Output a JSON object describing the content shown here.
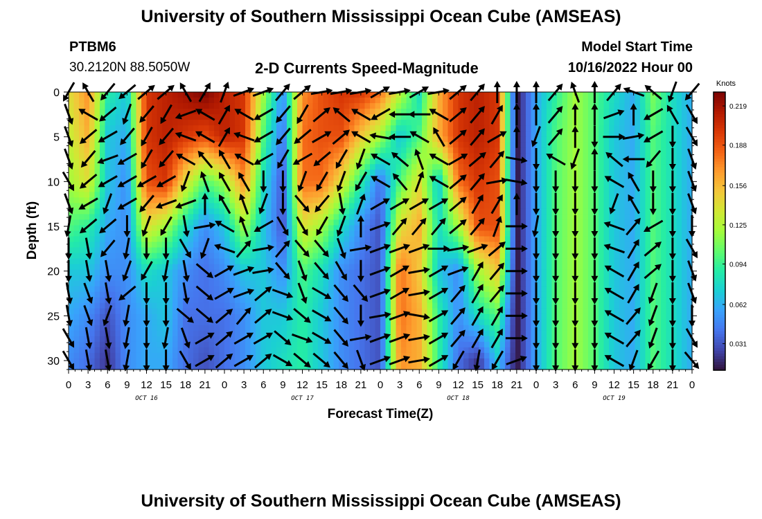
{
  "header": {
    "title": "University of Southern Mississippi Ocean Cube (AMSEAS)",
    "station": "PTBM6",
    "coords": "30.2120N  88.5050W",
    "subtitle": "2-D Currents Speed-Magnitude",
    "model_start_label": "Model Start Time",
    "model_start_value": "10/16/2022 Hour 00"
  },
  "footer": {
    "title": "University of Southern Mississippi Ocean Cube (AMSEAS)"
  },
  "chart_data": {
    "type": "heatmap",
    "title": "2-D Currents Speed-Magnitude",
    "xlabel": "Forecast Time(Z)",
    "ylabel": "Depth (ft)",
    "x_tick_labels": [
      "0",
      "3",
      "6",
      "9",
      "12",
      "15",
      "18",
      "21",
      "0",
      "3",
      "6",
      "9",
      "12",
      "15",
      "18",
      "21",
      "0",
      "3",
      "6",
      "9",
      "12",
      "15",
      "18",
      "21",
      "0",
      "3",
      "6",
      "9",
      "12",
      "15",
      "18",
      "21",
      "0"
    ],
    "x_range_hours": [
      0,
      96
    ],
    "day_labels": [
      {
        "label": "OCT 16",
        "hour": 12
      },
      {
        "label": "OCT 17",
        "hour": 36
      },
      {
        "label": "OCT 18",
        "hour": 60
      },
      {
        "label": "OCT 19",
        "hour": 84
      }
    ],
    "y_tick_labels": [
      "0",
      "5",
      "10",
      "15",
      "20",
      "25",
      "30"
    ],
    "y_range_ft": [
      0,
      31
    ],
    "colorbar": {
      "unit": "Knots",
      "tick_labels": [
        "0.219",
        "0.188",
        "0.156",
        "0.125",
        "0.094",
        "0.062",
        "0.031"
      ],
      "tick_values": [
        0.219,
        0.188,
        0.156,
        0.125,
        0.094,
        0.062,
        0.031
      ],
      "range": [
        0.01,
        0.23
      ],
      "colors": [
        "#30123b",
        "#4145ab",
        "#4675ed",
        "#39a2fc",
        "#1bcfd4",
        "#24eca6",
        "#61fc6c",
        "#a4fc3b",
        "#d1e834",
        "#f3c63a",
        "#fe9b2d",
        "#f36315",
        "#d93806",
        "#b11901",
        "#7a0403"
      ]
    },
    "speed_grid_knots": {
      "hours": [
        0,
        3,
        6,
        9,
        12,
        15,
        18,
        21,
        24,
        27,
        30,
        33,
        36,
        39,
        42,
        45,
        48,
        51,
        54,
        57,
        60,
        63,
        66,
        69,
        72,
        75,
        78,
        81,
        84,
        87,
        90,
        93,
        96
      ],
      "depths_ft": [
        0,
        5,
        10,
        15,
        20,
        25,
        30
      ],
      "rows": [
        [
          0.14,
          0.17,
          0.09,
          0.07,
          0.2,
          0.21,
          0.22,
          0.23,
          0.21,
          0.2,
          0.12,
          0.05,
          0.17,
          0.19,
          0.2,
          0.2,
          0.18,
          0.13,
          0.08,
          0.16,
          0.2,
          0.21,
          0.2,
          0.01,
          0.06,
          0.09,
          0.12,
          0.1,
          0.08,
          0.06,
          0.11,
          0.08,
          0.06
        ],
        [
          0.13,
          0.16,
          0.07,
          0.06,
          0.2,
          0.21,
          0.2,
          0.19,
          0.21,
          0.2,
          0.1,
          0.04,
          0.18,
          0.19,
          0.19,
          0.15,
          0.12,
          0.07,
          0.1,
          0.16,
          0.2,
          0.21,
          0.2,
          0.01,
          0.06,
          0.1,
          0.12,
          0.1,
          0.07,
          0.06,
          0.1,
          0.08,
          0.06
        ],
        [
          0.12,
          0.14,
          0.07,
          0.05,
          0.19,
          0.2,
          0.14,
          0.1,
          0.12,
          0.17,
          0.08,
          0.03,
          0.18,
          0.18,
          0.14,
          0.09,
          0.04,
          0.1,
          0.14,
          0.07,
          0.18,
          0.2,
          0.19,
          0.01,
          0.06,
          0.1,
          0.12,
          0.1,
          0.07,
          0.06,
          0.1,
          0.08,
          0.06
        ],
        [
          0.1,
          0.09,
          0.06,
          0.05,
          0.14,
          0.12,
          0.08,
          0.05,
          0.07,
          0.12,
          0.07,
          0.03,
          0.14,
          0.12,
          0.08,
          0.05,
          0.03,
          0.14,
          0.16,
          0.08,
          0.12,
          0.19,
          0.19,
          0.01,
          0.06,
          0.1,
          0.12,
          0.1,
          0.07,
          0.06,
          0.1,
          0.08,
          0.06
        ],
        [
          0.07,
          0.07,
          0.05,
          0.05,
          0.08,
          0.07,
          0.05,
          0.04,
          0.05,
          0.07,
          0.07,
          0.05,
          0.1,
          0.08,
          0.05,
          0.04,
          0.03,
          0.18,
          0.15,
          0.07,
          0.05,
          0.12,
          0.15,
          0.01,
          0.06,
          0.1,
          0.12,
          0.1,
          0.07,
          0.06,
          0.1,
          0.08,
          0.06
        ],
        [
          0.06,
          0.05,
          0.03,
          0.05,
          0.06,
          0.07,
          0.04,
          0.04,
          0.04,
          0.05,
          0.07,
          0.07,
          0.09,
          0.07,
          0.05,
          0.04,
          0.03,
          0.18,
          0.16,
          0.09,
          0.05,
          0.08,
          0.1,
          0.01,
          0.06,
          0.1,
          0.12,
          0.1,
          0.07,
          0.06,
          0.1,
          0.08,
          0.06
        ],
        [
          0.05,
          0.04,
          0.02,
          0.05,
          0.06,
          0.06,
          0.04,
          0.03,
          0.04,
          0.05,
          0.07,
          0.08,
          0.09,
          0.07,
          0.05,
          0.04,
          0.03,
          0.17,
          0.16,
          0.09,
          0.04,
          0.02,
          0.07,
          0.01,
          0.06,
          0.1,
          0.12,
          0.1,
          0.07,
          0.06,
          0.1,
          0.08,
          0.06
        ]
      ]
    },
    "vector_directions_deg": {
      "depths_ft": [
        0,
        2.5,
        5,
        7.5,
        10,
        12.5,
        15,
        17.5,
        20,
        22.5,
        25,
        27.5,
        30
      ],
      "angles": [
        [
          210,
          330,
          220,
          230,
          50,
          50,
          330,
          30,
          20,
          70,
          70,
          40,
          50,
          80,
          80,
          80,
          60,
          80,
          60,
          80,
          50,
          40,
          0,
          0,
          0,
          40,
          340,
          0,
          40,
          290,
          310,
          200,
          220
        ],
        [
          160,
          300,
          230,
          200,
          220,
          210,
          250,
          300,
          30,
          300,
          240,
          220,
          210,
          50,
          310,
          300,
          240,
          270,
          270,
          300,
          50,
          40,
          30,
          0,
          0,
          40,
          0,
          0,
          70,
          0,
          240,
          330,
          150
        ],
        [
          160,
          230,
          240,
          220,
          210,
          220,
          290,
          300,
          30,
          290,
          240,
          220,
          230,
          60,
          50,
          300,
          280,
          270,
          300,
          330,
          50,
          40,
          60,
          0,
          200,
          40,
          0,
          180,
          90,
          80,
          240,
          180,
          150
        ],
        [
          160,
          220,
          250,
          240,
          210,
          220,
          300,
          320,
          330,
          300,
          240,
          210,
          240,
          230,
          210,
          200,
          300,
          310,
          340,
          300,
          60,
          50,
          40,
          100,
          180,
          300,
          200,
          0,
          310,
          270,
          220,
          180,
          160
        ],
        [
          150,
          230,
          240,
          240,
          240,
          240,
          200,
          340,
          330,
          330,
          180,
          180,
          200,
          210,
          200,
          210,
          300,
          320,
          20,
          300,
          50,
          40,
          80,
          100,
          180,
          180,
          180,
          180,
          300,
          330,
          180,
          180,
          160
        ],
        [
          160,
          240,
          200,
          240,
          220,
          250,
          250,
          0,
          330,
          340,
          200,
          180,
          140,
          220,
          170,
          20,
          60,
          60,
          60,
          60,
          50,
          30,
          30,
          0,
          180,
          180,
          180,
          180,
          200,
          330,
          180,
          180,
          160
        ],
        [
          190,
          230,
          230,
          180,
          200,
          210,
          170,
          80,
          300,
          340,
          240,
          150,
          150,
          210,
          200,
          0,
          70,
          40,
          40,
          40,
          50,
          40,
          20,
          90,
          190,
          180,
          180,
          180,
          290,
          40,
          240,
          180,
          180
        ],
        [
          180,
          170,
          220,
          190,
          180,
          180,
          150,
          200,
          290,
          40,
          80,
          40,
          140,
          140,
          160,
          80,
          70,
          70,
          70,
          90,
          80,
          70,
          50,
          90,
          180,
          180,
          180,
          180,
          290,
          30,
          50,
          180,
          150
        ],
        [
          180,
          170,
          170,
          200,
          210,
          190,
          170,
          130,
          60,
          70,
          80,
          140,
          160,
          140,
          150,
          180,
          70,
          60,
          80,
          60,
          70,
          30,
          40,
          90,
          180,
          180,
          180,
          180,
          300,
          30,
          50,
          180,
          160
        ],
        [
          170,
          160,
          170,
          230,
          180,
          180,
          170,
          130,
          60,
          70,
          50,
          110,
          160,
          120,
          140,
          140,
          70,
          60,
          80,
          60,
          40,
          30,
          40,
          90,
          180,
          180,
          180,
          180,
          300,
          30,
          200,
          180,
          160
        ],
        [
          170,
          160,
          200,
          190,
          180,
          180,
          130,
          130,
          50,
          40,
          50,
          110,
          130,
          120,
          140,
          180,
          80,
          70,
          100,
          60,
          40,
          30,
          30,
          90,
          180,
          180,
          180,
          180,
          300,
          40,
          200,
          180,
          180
        ],
        [
          150,
          170,
          170,
          190,
          180,
          190,
          160,
          60,
          50,
          60,
          60,
          130,
          110,
          120,
          140,
          80,
          70,
          70,
          80,
          60,
          40,
          30,
          30,
          90,
          180,
          180,
          180,
          180,
          300,
          40,
          200,
          180,
          150
        ],
        [
          150,
          170,
          170,
          190,
          180,
          180,
          150,
          60,
          50,
          60,
          50,
          120,
          130,
          130,
          140,
          160,
          70,
          70,
          80,
          60,
          210,
          190,
          210,
          70,
          180,
          180,
          180,
          180,
          300,
          200,
          210,
          180,
          140
        ]
      ]
    }
  }
}
